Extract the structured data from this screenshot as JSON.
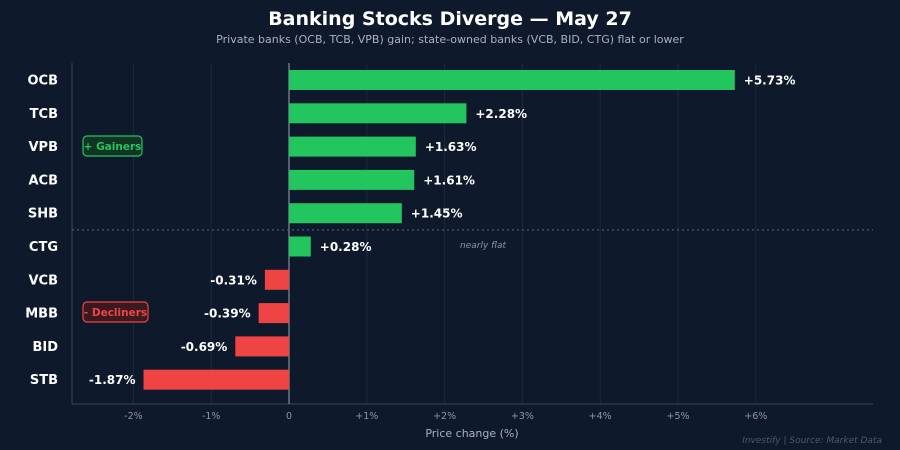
{
  "chart_data": {
    "type": "bar",
    "orientation": "horizontal",
    "title": "Banking Stocks Diverge — May 27",
    "subtitle": "Private banks (OCB, TCB, VPB) gain; state-owned banks (VCB, BID, CTG) flat or lower",
    "xlabel": "Price change (%)",
    "ylabel": "",
    "xlim": [
      -2.8,
      7.5
    ],
    "x_ticks": [
      -2,
      -1,
      0,
      1,
      2,
      3,
      4,
      5,
      6
    ],
    "x_tick_labels": [
      "-2%",
      "-1%",
      "0",
      "+1%",
      "+2%",
      "+3%",
      "+4%",
      "+5%",
      "+6%"
    ],
    "categories": [
      "OCB",
      "TCB",
      "VPB",
      "ACB",
      "SHB",
      "CTG",
      "VCB",
      "MBB",
      "BID",
      "STB"
    ],
    "values": [
      5.73,
      2.28,
      1.63,
      1.61,
      1.45,
      0.28,
      -0.31,
      -0.39,
      -0.69,
      -1.87
    ],
    "value_labels": [
      "+5.73%",
      "+2.28%",
      "+1.63%",
      "+1.61%",
      "+1.45%",
      "+0.28%",
      "-0.31%",
      "-0.39%",
      "-0.69%",
      "-1.87%"
    ],
    "colors": {
      "positive": "#22c55e",
      "negative": "#ef4444"
    },
    "grid": "vertical",
    "legend": [
      {
        "label": "+ Gainers",
        "color": "#22c55e",
        "placement": "left-upper"
      },
      {
        "label": "- Decliners",
        "color": "#ef4444",
        "placement": "left-lower"
      }
    ],
    "separator_after": "SHB",
    "annotations": [
      {
        "text": "nearly flat",
        "target": "CTG"
      }
    ],
    "credit": "Investify  |  Source: Market Data"
  },
  "colors": {
    "background": "#0e1a2b",
    "grid": "#1d2a3c",
    "axis": "#3a4658",
    "zero_line": "#6b7788"
  }
}
